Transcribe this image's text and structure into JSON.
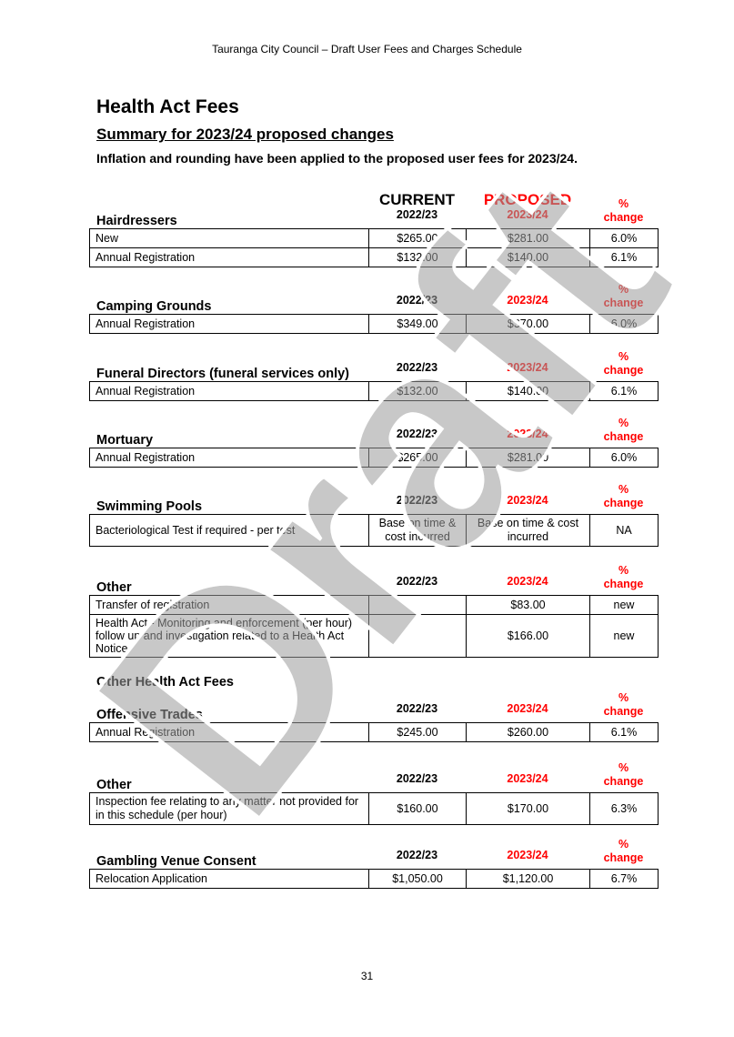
{
  "header": "Tauranga City Council – Draft User Fees and Charges Schedule",
  "title": "Health Act Fees",
  "subtitle": "Summary for 2023/24 proposed changes",
  "intro": "Inflation and rounding have been applied to the proposed user fees for 2023/24.",
  "current_label": "CURRENT",
  "proposed_label": "PROPOSED",
  "col_current": "2022/23",
  "col_proposed": "2023/24",
  "col_pct": "%",
  "col_change": "change",
  "sections": [
    {
      "title": "Hairdressers",
      "rows": [
        {
          "item": "New",
          "current": "$265.00",
          "proposed": "$281.00",
          "change": "6.0%"
        },
        {
          "item": "Annual Registration",
          "current": "$132.00",
          "proposed": "$140.00",
          "change": "6.1%"
        }
      ]
    },
    {
      "title": "Camping Grounds",
      "rows": [
        {
          "item": "Annual Registration",
          "current": "$349.00",
          "proposed": "$370.00",
          "change": "6.0%"
        }
      ]
    },
    {
      "title": "Funeral Directors (funeral services only)",
      "rows": [
        {
          "item": "Annual Registration",
          "current": "$132.00",
          "proposed": "$140.00",
          "change": "6.1%"
        }
      ]
    },
    {
      "title": "Mortuary",
      "rows": [
        {
          "item": "Annual Registration",
          "current": "$265.00",
          "proposed": "$281.00",
          "change": "6.0%"
        }
      ]
    },
    {
      "title": "Swimming Pools",
      "rows": [
        {
          "item": "Bacteriological Test if required - per test",
          "current": "Base on time & cost incurred",
          "proposed": "Base on time & cost incurred",
          "change": "NA"
        }
      ]
    },
    {
      "title": "Other",
      "rows": [
        {
          "item": "Transfer of registration",
          "current": "",
          "proposed": "$83.00",
          "change": "new"
        },
        {
          "item": "Health Act - Monitoring and enforcement (per hour) follow up and investigation related to a Health Act Notice",
          "current": "",
          "proposed": "$166.00",
          "change": "new"
        }
      ]
    },
    {
      "title": "Offensive Trades",
      "rows": [
        {
          "item": "Annual Registration",
          "current": "$245.00",
          "proposed": "$260.00",
          "change": "6.1%"
        }
      ]
    },
    {
      "title": "Other",
      "rows": [
        {
          "item": "Inspection fee relating to any matter not provided for in this schedule (per hour)",
          "current": "$160.00",
          "proposed": "$170.00",
          "change": "6.3%"
        }
      ]
    },
    {
      "title": "Gambling Venue Consent",
      "rows": [
        {
          "item": "Relocation Application",
          "current": "$1,050.00",
          "proposed": "$1,120.00",
          "change": "6.7%"
        }
      ]
    }
  ],
  "other_heading": "Other Health Act Fees",
  "page_number": "31",
  "watermark": "Draft",
  "colors": {
    "proposed": "#ff0000",
    "watermark": "#9a9a9a"
  }
}
